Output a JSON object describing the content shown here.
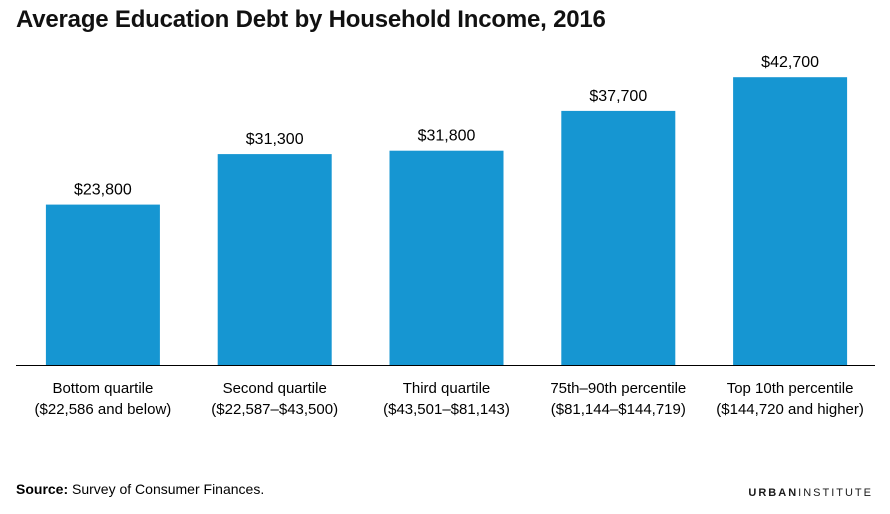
{
  "header": {
    "title": "Average Education Debt by Household Income, 2016"
  },
  "footer": {
    "source_label": "Source:",
    "source_text": "Survey of Consumer Finances.",
    "logo_part1": "URBAN",
    "logo_part2": "INSTITUTE"
  },
  "chart_data": {
    "type": "bar",
    "title": "Average Education Debt by Household Income, 2016",
    "categories": [
      [
        "Bottom quartile",
        "($22,586 and below)"
      ],
      [
        "Second quartile",
        "($22,587–$43,500)"
      ],
      [
        "Third quartile",
        "($43,501–$81,143)"
      ],
      [
        "75th–90th percentile",
        "($81,144–$144,719)"
      ],
      [
        "Top 10th percentile",
        "($144,720 and higher)"
      ]
    ],
    "values": [
      23800,
      31300,
      31800,
      37700,
      42700
    ],
    "value_labels": [
      "$23,800",
      "$31,300",
      "$31,800",
      "$37,700",
      "$42,700"
    ],
    "ylim": [
      0,
      46000
    ],
    "grid": false,
    "bar_color": "#1696d2",
    "axis_color": "#000000"
  }
}
